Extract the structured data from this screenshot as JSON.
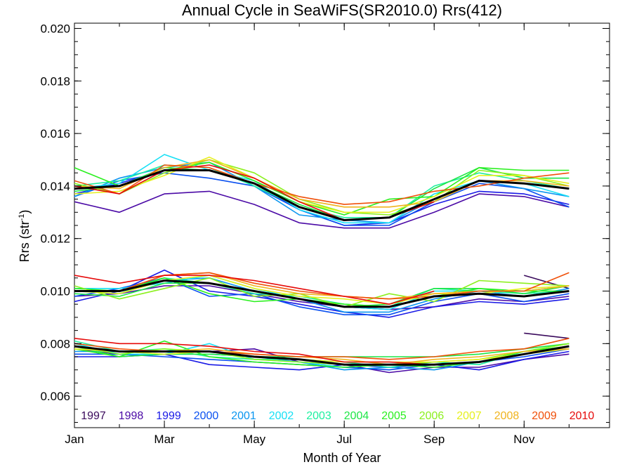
{
  "chart_data": {
    "type": "line",
    "title": "Annual Cycle in SeaWiFS(SR2010.0) Rrs(412)",
    "xlabel": "Month of Year",
    "ylabel_main": "Rrs (str",
    "ylabel_sup": "-1",
    "ylabel_close": ")",
    "xlim": [
      1,
      12.9
    ],
    "ylim": [
      0.0048,
      0.0202
    ],
    "x_ticks": [
      {
        "value": 1,
        "label": "Jan"
      },
      {
        "value": 3,
        "label": "Mar"
      },
      {
        "value": 5,
        "label": "May"
      },
      {
        "value": 7,
        "label": "Jul"
      },
      {
        "value": 9,
        "label": "Sep"
      },
      {
        "value": 11,
        "label": "Nov"
      }
    ],
    "y_ticks": [
      {
        "value": 0.006,
        "label": "0.006"
      },
      {
        "value": 0.008,
        "label": "0.008"
      },
      {
        "value": 0.01,
        "label": "0.010"
      },
      {
        "value": 0.012,
        "label": "0.012"
      },
      {
        "value": 0.014,
        "label": "0.014"
      },
      {
        "value": 0.016,
        "label": "0.016"
      },
      {
        "value": 0.018,
        "label": "0.018"
      },
      {
        "value": 0.02,
        "label": "0.020"
      }
    ],
    "x": [
      1,
      2,
      3,
      4,
      5,
      6,
      7,
      8,
      9,
      10,
      11,
      12
    ],
    "series": [
      {
        "name": "1997",
        "color": "#3a0a5c",
        "groups": [
          [
            null,
            null,
            null,
            null,
            null,
            null,
            null,
            null,
            null,
            null,
            0.0084,
            0.0082
          ],
          [
            null,
            null,
            null,
            null,
            null,
            null,
            null,
            null,
            null,
            null,
            0.0106,
            0.0101
          ],
          [
            null,
            null,
            null,
            null,
            null,
            null,
            null,
            null,
            null,
            null,
            null,
            null
          ]
        ]
      },
      {
        "name": "1998",
        "color": "#4b0aa6",
        "groups": [
          [
            0.0078,
            0.0076,
            0.0076,
            0.0077,
            0.0078,
            0.0073,
            0.0072,
            0.0069,
            0.0071,
            0.0071,
            0.0074,
            0.0076
          ],
          [
            0.0098,
            0.0099,
            0.0102,
            0.0102,
            0.0099,
            0.0096,
            0.0094,
            0.0093,
            0.0094,
            0.0097,
            0.0096,
            0.0098
          ],
          [
            0.0134,
            0.013,
            0.0137,
            0.0138,
            0.0133,
            0.0126,
            0.0124,
            0.0124,
            0.013,
            0.0137,
            0.0136,
            0.0132
          ]
        ]
      },
      {
        "name": "1999",
        "color": "#1a1ae6",
        "groups": [
          [
            0.0075,
            0.0075,
            0.0076,
            0.0072,
            0.0071,
            0.007,
            0.0072,
            0.0071,
            0.0072,
            0.007,
            0.0074,
            0.0077
          ],
          [
            0.0096,
            0.01,
            0.0108,
            0.01,
            0.0098,
            0.0095,
            0.0092,
            0.009,
            0.0094,
            0.0096,
            0.0095,
            0.0097
          ],
          [
            0.0137,
            0.0141,
            0.0146,
            0.0146,
            0.0141,
            0.0131,
            0.0125,
            0.0126,
            0.0133,
            0.0138,
            0.0137,
            0.0133
          ]
        ]
      },
      {
        "name": "2000",
        "color": "#0a50f0",
        "groups": [
          [
            0.0076,
            0.0076,
            0.0075,
            0.0074,
            0.0073,
            0.0072,
            0.0071,
            0.007,
            0.0072,
            0.0073,
            0.0075,
            0.0078
          ],
          [
            0.0098,
            0.0101,
            0.0105,
            0.0098,
            0.0099,
            0.0094,
            0.0091,
            0.0091,
            0.0096,
            0.0099,
            0.0096,
            0.0099
          ],
          [
            0.0136,
            0.0142,
            0.0145,
            0.0143,
            0.014,
            0.0131,
            0.0125,
            0.0125,
            0.0134,
            0.0141,
            0.0139,
            0.0132
          ]
        ]
      },
      {
        "name": "2001",
        "color": "#0a96f0",
        "groups": [
          [
            0.0077,
            0.0077,
            0.0076,
            0.0076,
            0.0075,
            0.0073,
            0.007,
            0.0071,
            0.007,
            0.0073,
            0.0076,
            0.0079
          ],
          [
            0.01,
            0.01,
            0.0104,
            0.0105,
            0.01,
            0.0097,
            0.0092,
            0.0092,
            0.0097,
            0.01,
            0.0098,
            0.0101
          ],
          [
            0.0136,
            0.0143,
            0.0147,
            0.0149,
            0.014,
            0.0129,
            0.0127,
            0.0126,
            0.0135,
            0.0142,
            0.0139,
            0.0136
          ]
        ]
      },
      {
        "name": "2002",
        "color": "#18e0f5",
        "groups": [
          [
            0.008,
            0.0076,
            0.0076,
            0.008,
            0.0074,
            0.0073,
            0.0071,
            0.0072,
            0.0072,
            0.0073,
            0.0076,
            0.0079
          ],
          [
            0.0101,
            0.0101,
            0.0103,
            0.0106,
            0.0101,
            0.0097,
            0.0094,
            0.0093,
            0.01,
            0.01,
            0.01,
            0.0102
          ],
          [
            0.0139,
            0.0141,
            0.0152,
            0.0146,
            0.0142,
            0.0131,
            0.0126,
            0.0126,
            0.0137,
            0.0142,
            0.0141,
            0.0136
          ]
        ]
      },
      {
        "name": "2003",
        "color": "#1ef0a0",
        "groups": [
          [
            0.0081,
            0.0077,
            0.0078,
            0.0075,
            0.0074,
            0.0074,
            0.0073,
            0.0071,
            0.0073,
            0.0072,
            0.0077,
            0.008
          ],
          [
            0.01,
            0.0099,
            0.0105,
            0.0103,
            0.0099,
            0.0098,
            0.0095,
            0.0094,
            0.0101,
            0.01,
            0.0099,
            0.01
          ],
          [
            0.014,
            0.0142,
            0.0148,
            0.0147,
            0.014,
            0.0132,
            0.0128,
            0.0128,
            0.014,
            0.0145,
            0.0142,
            0.0139
          ]
        ]
      },
      {
        "name": "2004",
        "color": "#1ee646",
        "groups": [
          [
            0.0079,
            0.0075,
            0.0076,
            0.0076,
            0.0075,
            0.0075,
            0.0075,
            0.0075,
            0.0075,
            0.0076,
            0.0078,
            0.008
          ],
          [
            0.0099,
            0.0098,
            0.0103,
            0.0103,
            0.01,
            0.0097,
            0.0094,
            0.0095,
            0.0101,
            0.0101,
            0.0099,
            0.0102
          ],
          [
            0.0138,
            0.014,
            0.0147,
            0.0146,
            0.0141,
            0.0133,
            0.0127,
            0.0128,
            0.0139,
            0.0147,
            0.0143,
            0.0143
          ]
        ]
      },
      {
        "name": "2005",
        "color": "#2af01e",
        "groups": [
          [
            0.0078,
            0.0075,
            0.0081,
            0.0075,
            0.0073,
            0.0072,
            0.0071,
            0.0072,
            0.0071,
            0.0073,
            0.0077,
            0.0079
          ],
          [
            0.0101,
            0.01,
            0.0105,
            0.0099,
            0.0096,
            0.0097,
            0.0095,
            0.0094,
            0.0098,
            0.0101,
            0.01,
            0.01
          ],
          [
            0.0147,
            0.014,
            0.0146,
            0.0149,
            0.0142,
            0.0134,
            0.0129,
            0.0135,
            0.0136,
            0.0147,
            0.0146,
            0.0146
          ]
        ]
      },
      {
        "name": "2006",
        "color": "#8cf01e",
        "groups": [
          [
            0.0079,
            0.0076,
            0.0078,
            0.0077,
            0.0074,
            0.0073,
            0.0072,
            0.0072,
            0.0073,
            0.0074,
            0.0077,
            0.008
          ],
          [
            0.0102,
            0.0097,
            0.0101,
            0.0105,
            0.0098,
            0.0099,
            0.0094,
            0.0099,
            0.0096,
            0.0104,
            0.0103,
            0.0102
          ],
          [
            0.0141,
            0.0137,
            0.0145,
            0.015,
            0.0145,
            0.0135,
            0.013,
            0.0129,
            0.0134,
            0.0146,
            0.0144,
            0.014
          ]
        ]
      },
      {
        "name": "2007",
        "color": "#e6f01e",
        "groups": [
          [
            0.0078,
            0.0077,
            0.0076,
            0.0077,
            0.0075,
            0.0074,
            0.0073,
            0.0073,
            0.0073,
            0.0074,
            0.0076,
            0.0078
          ],
          [
            0.01,
            0.0099,
            0.0104,
            0.0106,
            0.0101,
            0.0098,
            0.0097,
            0.0095,
            0.0099,
            0.0099,
            0.0101,
            0.0102
          ],
          [
            0.0137,
            0.0138,
            0.0144,
            0.0151,
            0.0143,
            0.0134,
            0.013,
            0.013,
            0.0136,
            0.0144,
            0.0144,
            0.0141
          ]
        ]
      },
      {
        "name": "2008",
        "color": "#f0b41e",
        "groups": [
          [
            0.0079,
            0.0077,
            0.0077,
            0.0078,
            0.0076,
            0.0075,
            0.0074,
            0.0072,
            0.0074,
            0.0075,
            0.0077,
            0.0078
          ],
          [
            0.01,
            0.01,
            0.0106,
            0.0107,
            0.0102,
            0.0099,
            0.0098,
            0.0097,
            0.0099,
            0.01,
            0.01,
            0.0102
          ],
          [
            0.014,
            0.0139,
            0.0147,
            0.015,
            0.0143,
            0.0135,
            0.0132,
            0.0132,
            0.0134,
            0.0142,
            0.0142,
            0.014
          ]
        ]
      },
      {
        "name": "2009",
        "color": "#f0500a",
        "groups": [
          [
            0.008,
            0.0078,
            0.0077,
            0.0077,
            0.0076,
            0.0075,
            0.0075,
            0.0074,
            0.0075,
            0.0077,
            0.0078,
            0.0082
          ],
          [
            0.01,
            0.01,
            0.0106,
            0.0107,
            0.0103,
            0.01,
            0.0098,
            0.0097,
            0.0098,
            0.01,
            0.01,
            0.0107
          ],
          [
            0.0142,
            0.0137,
            0.0148,
            0.0147,
            0.0141,
            0.0136,
            0.0133,
            0.0134,
            0.0138,
            0.014,
            0.0143,
            0.0145
          ]
        ]
      },
      {
        "name": "2010",
        "color": "#e60a0a",
        "groups": [
          [
            0.0082,
            0.008,
            0.008,
            0.0079,
            0.0077,
            0.0076,
            0.0073,
            0.0073,
            0.0072,
            null,
            null,
            null
          ],
          [
            0.0106,
            0.0103,
            0.0106,
            0.0106,
            0.0104,
            0.0101,
            0.0098,
            0.0095,
            0.01,
            null,
            null,
            null
          ],
          [
            0.014,
            0.0137,
            0.0146,
            0.0148,
            0.0143,
            0.0134,
            0.0127,
            0.0128,
            0.0134,
            null,
            null,
            null
          ]
        ]
      },
      {
        "name": "",
        "color": "#000000",
        "width": 3,
        "groups": [
          [
            0.0079,
            0.0077,
            0.0077,
            0.0077,
            0.0075,
            0.0074,
            0.0072,
            0.0072,
            0.0072,
            0.0073,
            0.0076,
            0.0079
          ],
          [
            0.01,
            0.01,
            0.0104,
            0.0103,
            0.01,
            0.0097,
            0.0094,
            0.0094,
            0.0098,
            0.0099,
            0.0098,
            0.01
          ],
          [
            0.0139,
            0.014,
            0.0146,
            0.0146,
            0.0141,
            0.0132,
            0.0127,
            0.0128,
            0.0135,
            0.0142,
            0.0141,
            0.0139
          ]
        ]
      }
    ]
  }
}
